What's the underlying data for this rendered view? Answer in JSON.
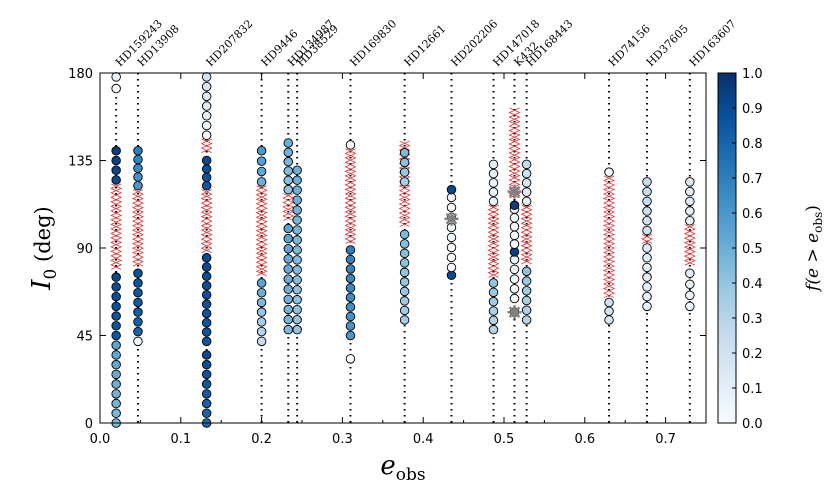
{
  "chart_data": {
    "type": "scatter",
    "xlabel_main": "e",
    "xlabel_sub": "obs",
    "ylabel_main": "I",
    "ylabel_sub": "0",
    "ylabel_unit": " (deg)",
    "xlim": [
      0.0,
      0.75
    ],
    "ylim": [
      0,
      180
    ],
    "xticks": [
      0.0,
      0.1,
      0.2,
      0.3,
      0.4,
      0.5,
      0.6,
      0.7
    ],
    "xtick_labels": [
      "0.0",
      "0.1",
      "0.2",
      "0.3",
      "0.4",
      "0.5",
      "0.6",
      "0.7"
    ],
    "yticks": [
      0,
      45,
      90,
      135,
      180
    ],
    "ytick_labels": [
      "0",
      "45",
      "90",
      "135",
      "180"
    ],
    "colorbar": {
      "label_main": "f(e > e",
      "label_sub": "obs",
      "label_end": ")",
      "range": [
        0.0,
        1.0
      ],
      "ticks": [
        0.0,
        0.1,
        0.2,
        0.3,
        0.4,
        0.5,
        0.6,
        0.7,
        0.8,
        0.9,
        1.0
      ],
      "tick_labels": [
        "0.0",
        "0.1",
        "0.2",
        "0.3",
        "0.4",
        "0.5",
        "0.6",
        "0.7",
        "0.8",
        "0.9",
        "1.0"
      ],
      "colors": [
        "#f7fbff",
        "#deebf7",
        "#c6dbef",
        "#9ecae1",
        "#6baed6",
        "#4292c6",
        "#2171b5",
        "#08519c",
        "#08306b"
      ]
    },
    "colors": {
      "excluded_marker": "#e03030",
      "marked_star": "#808080",
      "guide_line": "#000000"
    },
    "stars": [
      {
        "name": "HD159243",
        "e": 0.02,
        "segments": [
          {
            "i_range": [
              0,
              40
            ],
            "f_range": [
              0.45,
              0.55
            ]
          },
          {
            "i_range": [
              45,
              75
            ],
            "f_range": [
              0.85,
              0.9
            ]
          },
          {
            "i_range": [
              125,
              140
            ],
            "f_range": [
              0.9,
              0.95
            ]
          },
          {
            "i_range": [
              172,
              178
            ],
            "f_range": [
              0.02,
              0.05
            ]
          }
        ],
        "excluded": [
          [
            77,
            123
          ]
        ]
      },
      {
        "name": "HD13908",
        "e": 0.047,
        "segments": [
          {
            "i_range": [
              42,
              42
            ],
            "f_range": [
              0.02,
              0.02
            ]
          },
          {
            "i_range": [
              47,
              77
            ],
            "f_range": [
              0.8,
              0.88
            ]
          },
          {
            "i_range": [
              122,
              140
            ],
            "f_range": [
              0.6,
              0.7
            ]
          }
        ],
        "excluded": [
          [
            79,
            120
          ]
        ]
      },
      {
        "name": "HD207832",
        "e": 0.132,
        "segments": [
          {
            "i_range": [
              0,
              35
            ],
            "f_range": [
              0.78,
              0.9
            ]
          },
          {
            "i_range": [
              42,
              85
            ],
            "f_range": [
              0.85,
              0.9
            ]
          },
          {
            "i_range": [
              122,
              135
            ],
            "f_range": [
              0.85,
              0.9
            ]
          },
          {
            "i_range": [
              148,
              178
            ],
            "f_range": [
              0.02,
              0.2
            ]
          }
        ],
        "excluded": [
          [
            87,
            120
          ],
          [
            137,
            146
          ]
        ]
      },
      {
        "name": "HD9446",
        "e": 0.2,
        "segments": [
          {
            "i_range": [
              42,
              72
            ],
            "f_range": [
              0.25,
              0.55
            ]
          },
          {
            "i_range": [
              124,
              140
            ],
            "f_range": [
              0.5,
              0.6
            ]
          }
        ],
        "excluded": [
          [
            74,
            122
          ]
        ]
      },
      {
        "name": "HD134987",
        "e": 0.233,
        "segments": [
          {
            "i_range": [
              48,
              100
            ],
            "f_range": [
              0.45,
              0.55
            ]
          },
          {
            "i_range": [
              120,
              144
            ],
            "f_range": [
              0.4,
              0.5
            ]
          }
        ],
        "excluded": [
          [
            102,
            118
          ]
        ]
      },
      {
        "name": "HD38529",
        "e": 0.244,
        "segments": [
          {
            "i_range": [
              48,
              130
            ],
            "f_range": [
              0.4,
              0.5
            ]
          }
        ],
        "excluded": []
      },
      {
        "name": "HD169830",
        "e": 0.31,
        "segments": [
          {
            "i_range": [
              33,
              33
            ],
            "f_range": [
              0.0,
              0.0
            ]
          },
          {
            "i_range": [
              45,
              89
            ],
            "f_range": [
              0.6,
              0.7
            ]
          },
          {
            "i_range": [
              143,
              143
            ],
            "f_range": [
              0.02,
              0.02
            ]
          }
        ],
        "excluded": [
          [
            91,
            141
          ]
        ]
      },
      {
        "name": "HD12661",
        "e": 0.377,
        "segments": [
          {
            "i_range": [
              53,
              97
            ],
            "f_range": [
              0.35,
              0.45
            ]
          },
          {
            "i_range": [
              124,
              139
            ],
            "f_range": [
              0.35,
              0.45
            ]
          }
        ],
        "excluded": [
          [
            99,
            145
          ]
        ]
      },
      {
        "name": "HD202206",
        "e": 0.435,
        "segments": [
          {
            "i_range": [
              76,
              76
            ],
            "f_range": [
              0.9,
              0.9
            ]
          },
          {
            "i_range": [
              80,
              116
            ],
            "f_range": [
              0.0,
              0.02
            ]
          },
          {
            "i_range": [
              120,
              120
            ],
            "f_range": [
              0.9,
              0.9
            ]
          }
        ],
        "excluded": [],
        "marked": [
          105
        ]
      },
      {
        "name": "HD147018",
        "e": 0.487,
        "segments": [
          {
            "i_range": [
              48,
              72
            ],
            "f_range": [
              0.3,
              0.4
            ]
          },
          {
            "i_range": [
              114,
              133
            ],
            "f_range": [
              0.05,
              0.1
            ]
          }
        ],
        "excluded": [
          [
            74,
            112
          ]
        ]
      },
      {
        "name": "K432",
        "e": 0.513,
        "segments": [
          {
            "i_range": [
              57,
              57
            ],
            "f_range": [
              0.3,
              0.3
            ]
          },
          {
            "i_range": [
              64,
              84
            ],
            "f_range": [
              0.0,
              0.05
            ]
          },
          {
            "i_range": [
              88,
              88
            ],
            "f_range": [
              0.95,
              0.95
            ]
          },
          {
            "i_range": [
              92,
              110
            ],
            "f_range": [
              0.0,
              0.02
            ]
          },
          {
            "i_range": [
              112,
              112
            ],
            "f_range": [
              0.95,
              0.95
            ]
          }
        ],
        "excluded": [
          [
            114,
            162
          ]
        ],
        "marked": [
          57,
          119
        ]
      },
      {
        "name": "HD168443",
        "e": 0.528,
        "segments": [
          {
            "i_range": [
              53,
              78
            ],
            "f_range": [
              0.3,
              0.4
            ]
          },
          {
            "i_range": [
              114,
              133
            ],
            "f_range": [
              0.1,
              0.25
            ]
          }
        ],
        "excluded": [
          [
            80,
            112
          ]
        ]
      },
      {
        "name": "HD74156",
        "e": 0.63,
        "segments": [
          {
            "i_range": [
              53,
              62
            ],
            "f_range": [
              0.15,
              0.2
            ]
          },
          {
            "i_range": [
              129,
              129
            ],
            "f_range": [
              0.02,
              0.02
            ]
          }
        ],
        "excluded": [
          [
            63,
            127
          ]
        ]
      },
      {
        "name": "HD37605",
        "e": 0.677,
        "segments": [
          {
            "i_range": [
              60,
              90
            ],
            "f_range": [
              0.08,
              0.12
            ]
          },
          {
            "i_range": [
              99,
              124
            ],
            "f_range": [
              0.2,
              0.25
            ]
          }
        ],
        "excluded": [
          [
            92,
            97
          ]
        ]
      },
      {
        "name": "HD163607",
        "e": 0.73,
        "segments": [
          {
            "i_range": [
              60,
              77
            ],
            "f_range": [
              0.05,
              0.1
            ]
          },
          {
            "i_range": [
              104,
              124
            ],
            "f_range": [
              0.1,
              0.15
            ]
          }
        ],
        "excluded": [
          [
            79,
            102
          ]
        ]
      }
    ]
  }
}
